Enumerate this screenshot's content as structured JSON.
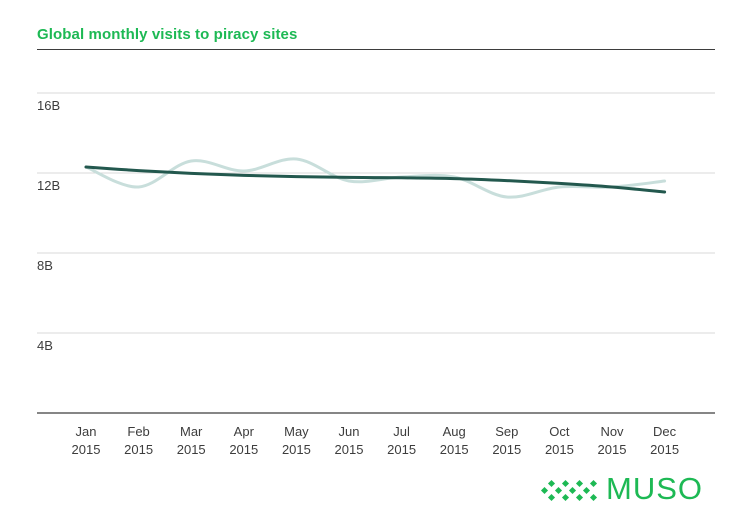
{
  "chart_data": {
    "type": "line",
    "title": "Global monthly visits to piracy sites",
    "categories": [
      [
        "Jan",
        "2015"
      ],
      [
        "Feb",
        "2015"
      ],
      [
        "Mar",
        "2015"
      ],
      [
        "Apr",
        "2015"
      ],
      [
        "May",
        "2015"
      ],
      [
        "Jun",
        "2015"
      ],
      [
        "Jul",
        "2015"
      ],
      [
        "Aug",
        "2015"
      ],
      [
        "Sep",
        "2015"
      ],
      [
        "Oct",
        "2015"
      ],
      [
        "Nov",
        "2015"
      ],
      [
        "Dec",
        "2015"
      ]
    ],
    "y_ticks": [
      {
        "value": 16,
        "label": "16B"
      },
      {
        "value": 12,
        "label": "12B"
      },
      {
        "value": 8,
        "label": "8B"
      },
      {
        "value": 4,
        "label": "4B"
      }
    ],
    "ylim": [
      0,
      16
    ],
    "series": [
      {
        "values": [
          12.3,
          11.3,
          12.6,
          12.1,
          12.7,
          11.6,
          11.8,
          11.8,
          10.8,
          11.3,
          11.3,
          11.6
        ],
        "color": "#c8dedb"
      },
      {
        "values": [
          12.3,
          12.12,
          11.98,
          11.88,
          11.82,
          11.78,
          11.76,
          11.72,
          11.62,
          11.48,
          11.3,
          11.05
        ],
        "color": "#23584e"
      }
    ],
    "grid": true,
    "colors": {
      "title": "#1db954",
      "axis": "#3d3d3d",
      "grid": "#d9d9d9"
    }
  },
  "logo": {
    "text": "MUSO",
    "icon": "muso-logo-icon"
  }
}
